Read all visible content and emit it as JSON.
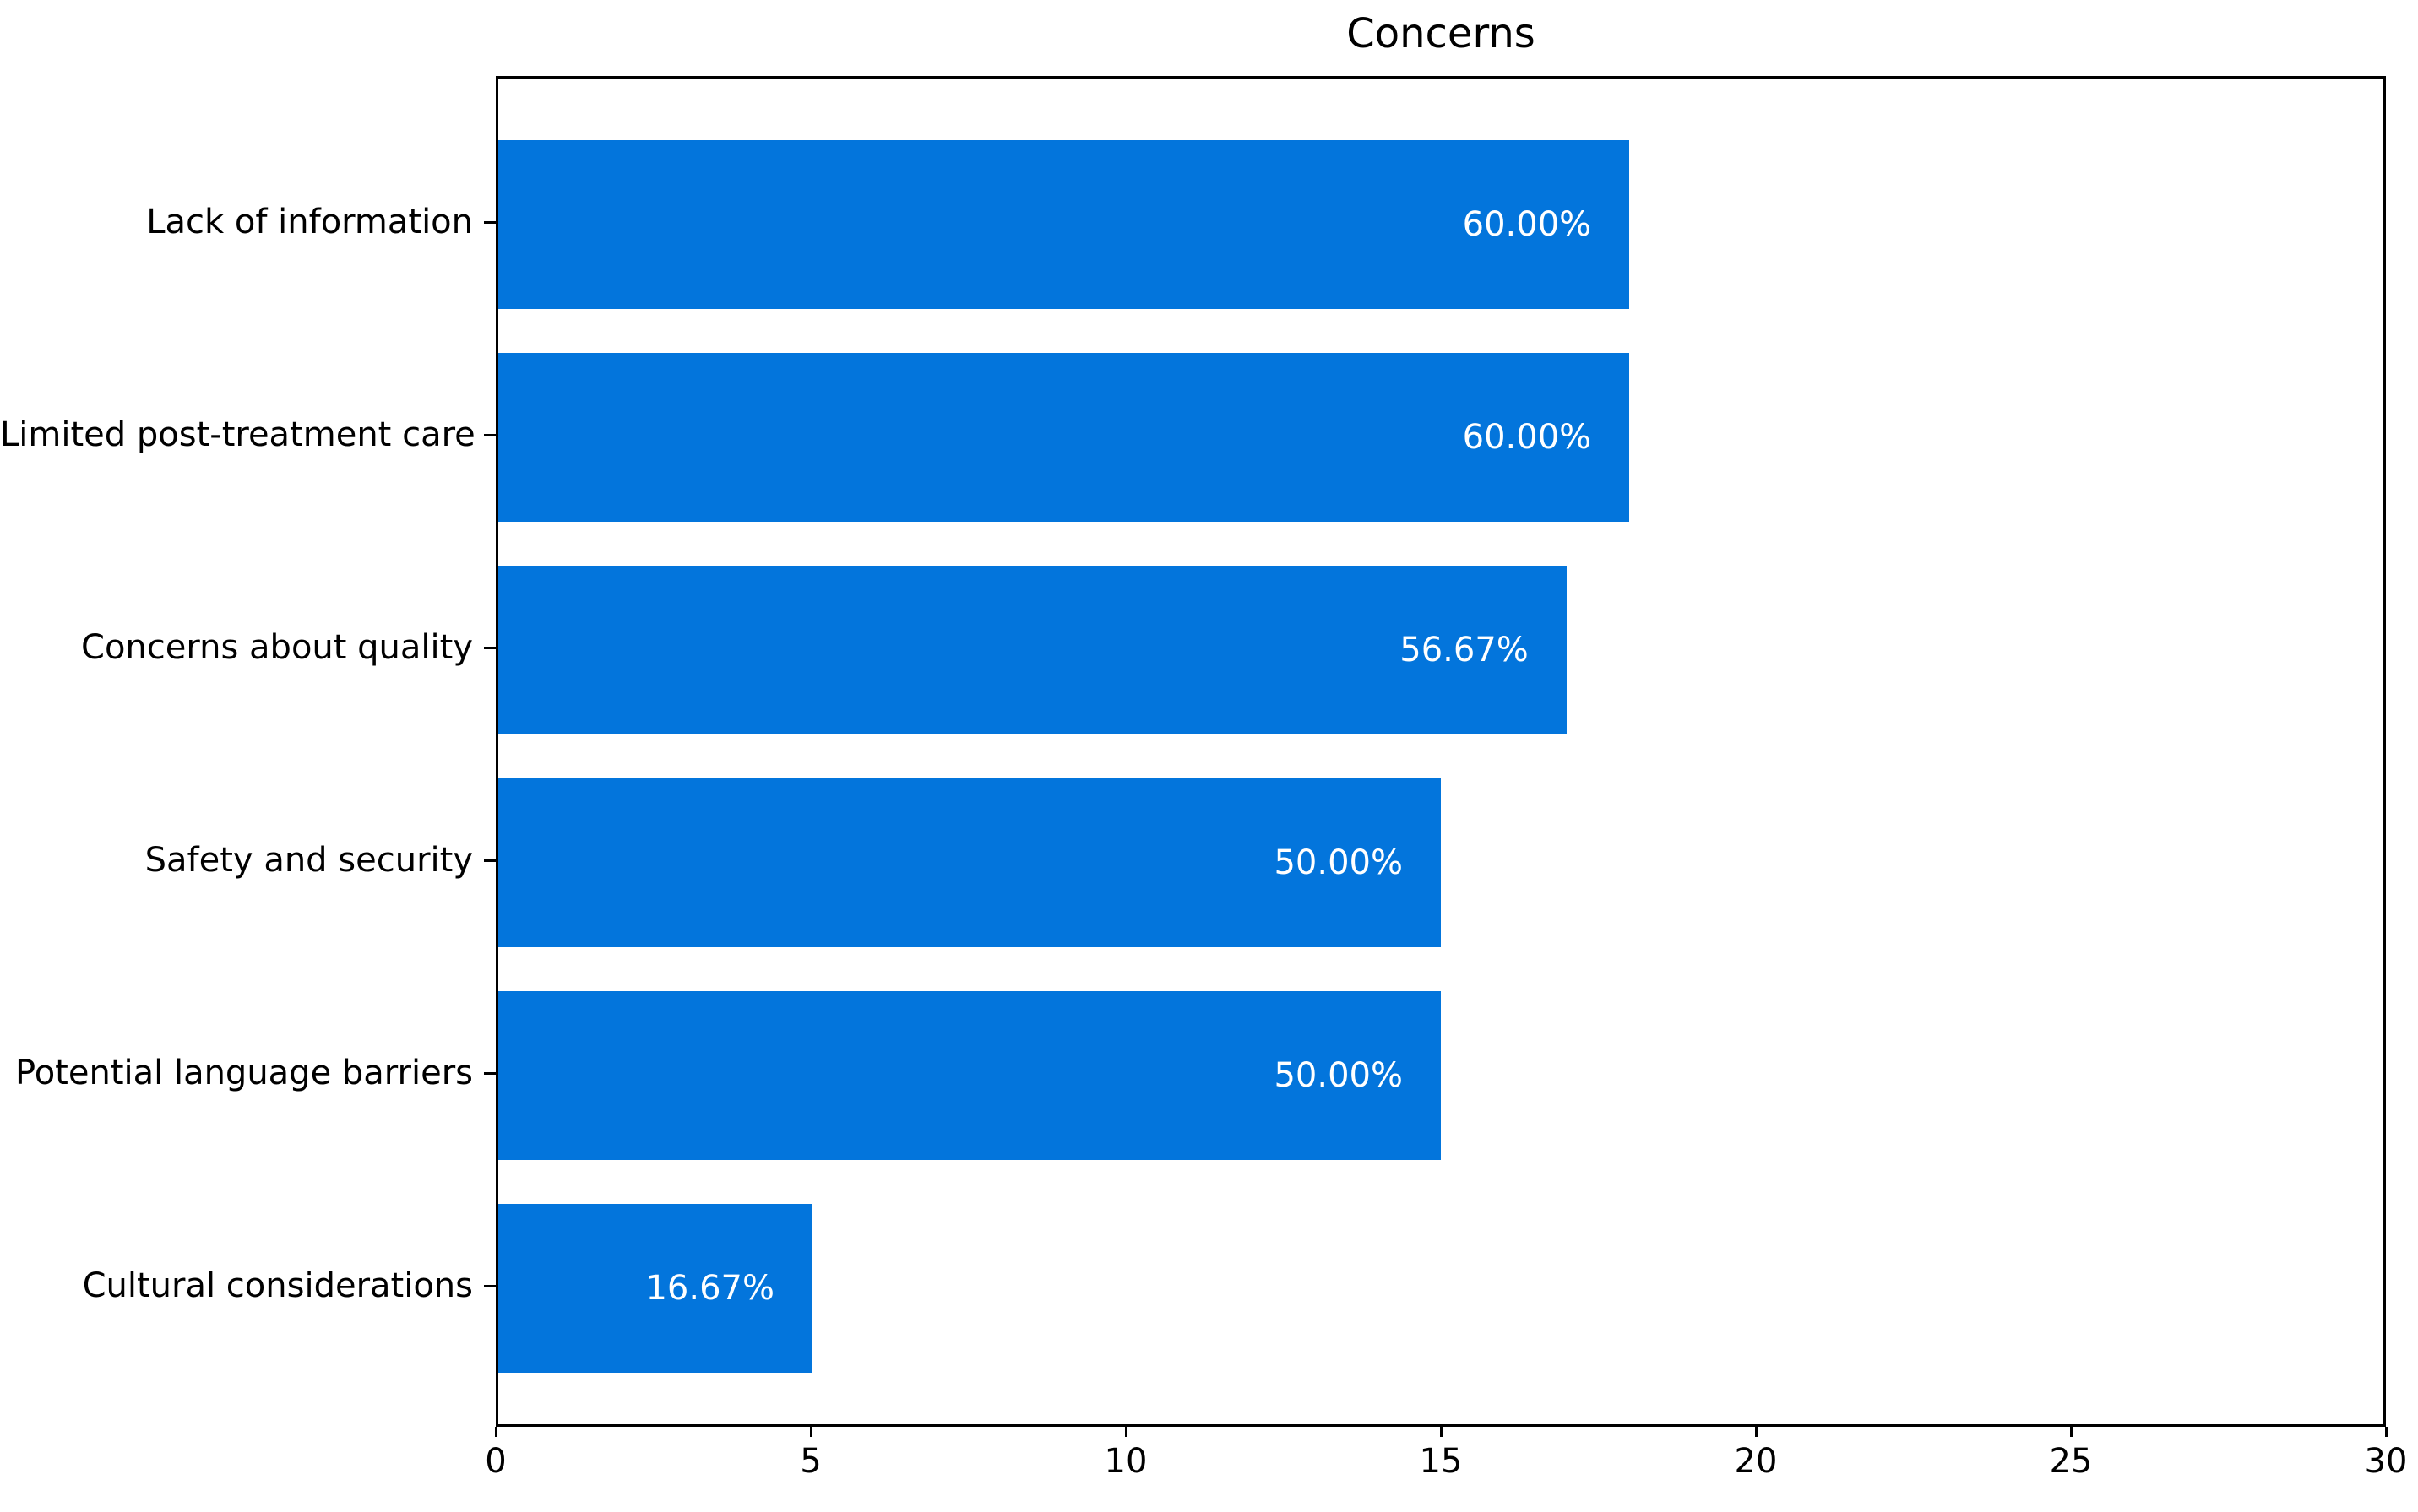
{
  "chart_data": {
    "type": "bar",
    "orientation": "horizontal",
    "title": "Concerns",
    "categories": [
      "Lack of information",
      "Limited post-treatment care",
      "Concerns about quality",
      "Safety and security",
      "Potential language barriers",
      "Cultural considerations"
    ],
    "values": [
      18,
      18,
      17,
      15,
      15,
      5
    ],
    "bar_labels": [
      "60.00%",
      "60.00%",
      "56.67%",
      "50.00%",
      "50.00%",
      "16.67%"
    ],
    "xlabel": "",
    "ylabel": "",
    "xlim": [
      0,
      30
    ],
    "xticks": [
      0,
      5,
      10,
      15,
      20,
      25,
      30
    ],
    "grid": false,
    "legend_position": "none",
    "bar_color": "#0375DC",
    "bar_label_color": "#ffffff",
    "axis_color": "#000000"
  }
}
